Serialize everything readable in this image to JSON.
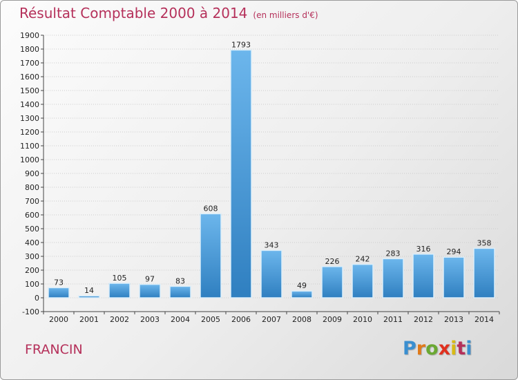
{
  "header": {
    "title": "Résultat Comptable 2000 à 2014",
    "subtitle": "(en milliers d'€)"
  },
  "footer": {
    "commune": "FRANCIN",
    "brand": "Proxiti",
    "brand_colors": [
      "#3a8fd0",
      "#e07a1a",
      "#6aa832",
      "#e0301e",
      "#d8ba15",
      "#b5305a",
      "#3a8fd0"
    ]
  },
  "colors": {
    "title": "#b5305a",
    "bar_light": "#6cb6ec",
    "bar_dark": "#2f7fc0",
    "grid": "#cccccc"
  },
  "chart_data": {
    "type": "bar",
    "categories": [
      "2000",
      "2001",
      "2002",
      "2003",
      "2004",
      "2005",
      "2006",
      "2007",
      "2008",
      "2009",
      "2010",
      "2011",
      "2012",
      "2013",
      "2014"
    ],
    "values": [
      73,
      14,
      105,
      97,
      83,
      608,
      1793,
      343,
      49,
      226,
      242,
      283,
      316,
      294,
      358
    ],
    "ylim": [
      -100,
      1900
    ],
    "yticks": [
      -100,
      0,
      100,
      200,
      300,
      400,
      500,
      600,
      700,
      800,
      900,
      1000,
      1100,
      1200,
      1300,
      1400,
      1500,
      1600,
      1700,
      1800,
      1900
    ],
    "grid": true
  }
}
